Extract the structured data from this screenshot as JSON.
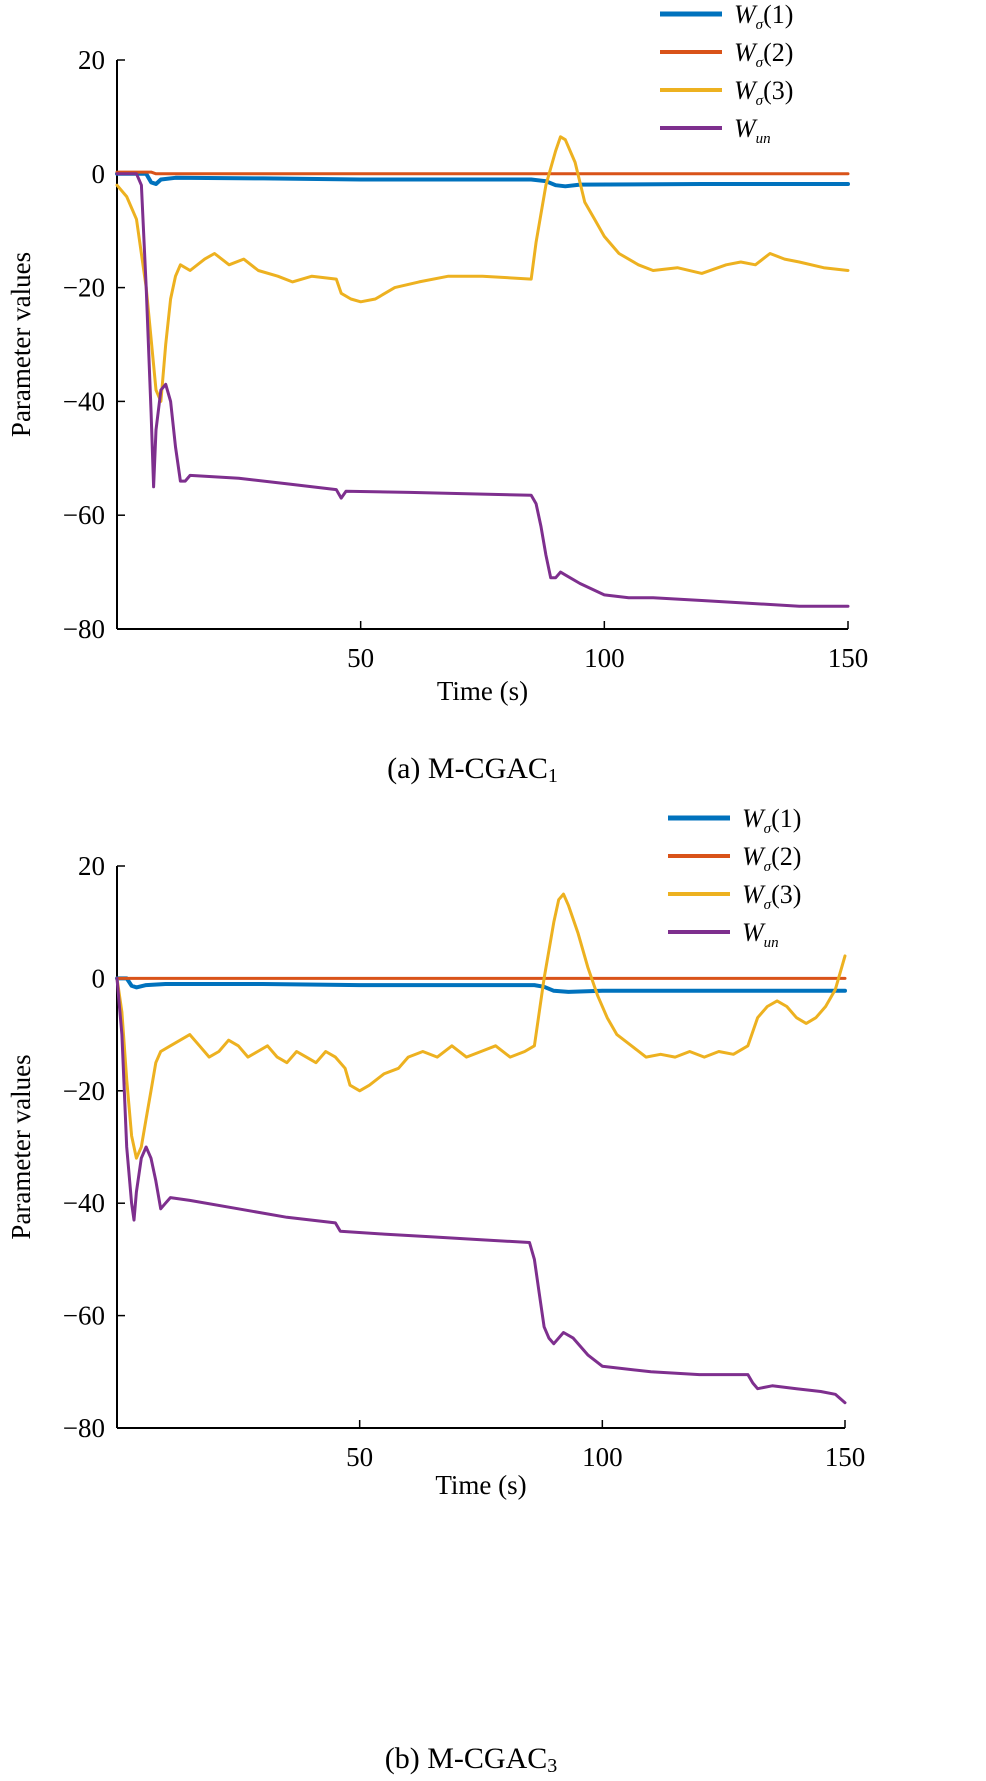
{
  "chart_data": [
    {
      "type": "line",
      "title": "",
      "caption": "(a) M-CGAC",
      "caption_subscript": "1",
      "xlabel": "Time (s)",
      "ylabel": "Parameter values",
      "xlim": [
        0,
        150
      ],
      "ylim": [
        -80,
        20
      ],
      "xticks": [
        50,
        100,
        150
      ],
      "yticks": [
        20,
        0,
        -20,
        -40,
        -60,
        -80
      ],
      "grid": false,
      "legend_position": "top-right",
      "series": [
        {
          "name": "W",
          "name_subscript": "σ",
          "name_suffix": "(1)",
          "color": "#0072BD",
          "points": [
            [
              0,
              0
            ],
            [
              6,
              0
            ],
            [
              7,
              -1.5
            ],
            [
              8,
              -1.8
            ],
            [
              9,
              -1
            ],
            [
              12,
              -0.7
            ],
            [
              30,
              -0.8
            ],
            [
              50,
              -1
            ],
            [
              85,
              -1
            ],
            [
              88,
              -1.3
            ],
            [
              90,
              -2
            ],
            [
              92,
              -2.2
            ],
            [
              95,
              -1.9
            ],
            [
              120,
              -1.8
            ],
            [
              150,
              -1.8
            ]
          ]
        },
        {
          "name": "W",
          "name_subscript": "σ",
          "name_suffix": "(2)",
          "color": "#D95319",
          "points": [
            [
              0,
              0.3
            ],
            [
              7,
              0.3
            ],
            [
              8,
              0
            ],
            [
              150,
              0
            ]
          ]
        },
        {
          "name": "W",
          "name_subscript": "σ",
          "name_suffix": "(3)",
          "color": "#EDB120",
          "points": [
            [
              0,
              -2
            ],
            [
              2,
              -4
            ],
            [
              4,
              -8
            ],
            [
              6,
              -20
            ],
            [
              8,
              -38
            ],
            [
              9,
              -40
            ],
            [
              10,
              -30
            ],
            [
              11,
              -22
            ],
            [
              12,
              -18
            ],
            [
              13,
              -16
            ],
            [
              15,
              -17
            ],
            [
              18,
              -15
            ],
            [
              20,
              -14
            ],
            [
              23,
              -16
            ],
            [
              26,
              -15
            ],
            [
              29,
              -17
            ],
            [
              33,
              -18
            ],
            [
              36,
              -19
            ],
            [
              40,
              -18
            ],
            [
              45,
              -18.5
            ],
            [
              46,
              -21
            ],
            [
              48,
              -22
            ],
            [
              50,
              -22.5
            ],
            [
              53,
              -22
            ],
            [
              57,
              -20
            ],
            [
              62,
              -19
            ],
            [
              68,
              -18
            ],
            [
              75,
              -18
            ],
            [
              85,
              -18.5
            ],
            [
              86,
              -12
            ],
            [
              88,
              -2
            ],
            [
              90,
              4
            ],
            [
              91,
              6.5
            ],
            [
              92,
              6
            ],
            [
              94,
              2
            ],
            [
              96,
              -5
            ],
            [
              98,
              -8
            ],
            [
              100,
              -11
            ],
            [
              103,
              -14
            ],
            [
              107,
              -16
            ],
            [
              110,
              -17
            ],
            [
              115,
              -16.5
            ],
            [
              120,
              -17.5
            ],
            [
              125,
              -16
            ],
            [
              128,
              -15.5
            ],
            [
              131,
              -16
            ],
            [
              134,
              -14
            ],
            [
              137,
              -15
            ],
            [
              140,
              -15.5
            ],
            [
              145,
              -16.5
            ],
            [
              150,
              -17
            ]
          ]
        },
        {
          "name": "W",
          "name_subscript": "un",
          "name_suffix": "",
          "color": "#7E2F8E",
          "points": [
            [
              0,
              0
            ],
            [
              4,
              0
            ],
            [
              5,
              -2
            ],
            [
              6,
              -20
            ],
            [
              7,
              -42
            ],
            [
              7.5,
              -55
            ],
            [
              8,
              -45
            ],
            [
              9,
              -38
            ],
            [
              10,
              -37
            ],
            [
              11,
              -40
            ],
            [
              12,
              -48
            ],
            [
              13,
              -54
            ],
            [
              14,
              -54
            ],
            [
              15,
              -53
            ],
            [
              25,
              -53.5
            ],
            [
              35,
              -54.5
            ],
            [
              45,
              -55.5
            ],
            [
              46,
              -57
            ],
            [
              47,
              -55.8
            ],
            [
              60,
              -56
            ],
            [
              75,
              -56.3
            ],
            [
              85,
              -56.5
            ],
            [
              86,
              -58
            ],
            [
              87,
              -62
            ],
            [
              88,
              -67
            ],
            [
              89,
              -71
            ],
            [
              90,
              -71
            ],
            [
              91,
              -70
            ],
            [
              92,
              -70.5
            ],
            [
              95,
              -72
            ],
            [
              100,
              -74
            ],
            [
              105,
              -74.5
            ],
            [
              110,
              -74.5
            ],
            [
              120,
              -75
            ],
            [
              130,
              -75.5
            ],
            [
              140,
              -76
            ],
            [
              150,
              -76
            ]
          ]
        }
      ]
    },
    {
      "type": "line",
      "title": "",
      "caption": "(b) M-CGAC",
      "caption_subscript": "3",
      "xlabel": "Time (s)",
      "ylabel": "Parameter values",
      "xlim": [
        0,
        150
      ],
      "ylim": [
        -80,
        20
      ],
      "xticks": [
        50,
        100,
        150
      ],
      "yticks": [
        20,
        0,
        -20,
        -40,
        -60,
        -80
      ],
      "grid": false,
      "legend_position": "top-right",
      "series": [
        {
          "name": "W",
          "name_subscript": "σ",
          "name_suffix": "(1)",
          "color": "#0072BD",
          "points": [
            [
              0,
              0
            ],
            [
              2,
              0
            ],
            [
              3,
              -1.3
            ],
            [
              4,
              -1.6
            ],
            [
              6,
              -1.2
            ],
            [
              10,
              -1
            ],
            [
              30,
              -1
            ],
            [
              50,
              -1.2
            ],
            [
              86,
              -1.2
            ],
            [
              88,
              -1.5
            ],
            [
              90,
              -2.2
            ],
            [
              93,
              -2.4
            ],
            [
              100,
              -2.2
            ],
            [
              130,
              -2.2
            ],
            [
              150,
              -2.2
            ]
          ]
        },
        {
          "name": "W",
          "name_subscript": "σ",
          "name_suffix": "(2)",
          "color": "#D95319",
          "points": [
            [
              0,
              0
            ],
            [
              150,
              0
            ]
          ]
        },
        {
          "name": "W",
          "name_subscript": "σ",
          "name_suffix": "(3)",
          "color": "#EDB120",
          "points": [
            [
              0,
              0
            ],
            [
              1,
              -6
            ],
            [
              2,
              -18
            ],
            [
              3,
              -28
            ],
            [
              4,
              -32
            ],
            [
              5,
              -30
            ],
            [
              6,
              -25
            ],
            [
              7,
              -20
            ],
            [
              8,
              -15
            ],
            [
              9,
              -13
            ],
            [
              11,
              -12
            ],
            [
              13,
              -11
            ],
            [
              15,
              -10
            ],
            [
              17,
              -12
            ],
            [
              19,
              -14
            ],
            [
              21,
              -13
            ],
            [
              23,
              -11
            ],
            [
              25,
              -12
            ],
            [
              27,
              -14
            ],
            [
              29,
              -13
            ],
            [
              31,
              -12
            ],
            [
              33,
              -14
            ],
            [
              35,
              -15
            ],
            [
              37,
              -13
            ],
            [
              39,
              -14
            ],
            [
              41,
              -15
            ],
            [
              43,
              -13
            ],
            [
              45,
              -14
            ],
            [
              47,
              -16
            ],
            [
              48,
              -19
            ],
            [
              50,
              -20
            ],
            [
              52,
              -19
            ],
            [
              55,
              -17
            ],
            [
              58,
              -16
            ],
            [
              60,
              -14
            ],
            [
              63,
              -13
            ],
            [
              66,
              -14
            ],
            [
              69,
              -12
            ],
            [
              72,
              -14
            ],
            [
              75,
              -13
            ],
            [
              78,
              -12
            ],
            [
              81,
              -14
            ],
            [
              84,
              -13
            ],
            [
              86,
              -12
            ],
            [
              88,
              0
            ],
            [
              90,
              10
            ],
            [
              91,
              14
            ],
            [
              92,
              15
            ],
            [
              93,
              13
            ],
            [
              95,
              8
            ],
            [
              97,
              2
            ],
            [
              99,
              -3
            ],
            [
              101,
              -7
            ],
            [
              103,
              -10
            ],
            [
              106,
              -12
            ],
            [
              109,
              -14
            ],
            [
              112,
              -13.5
            ],
            [
              115,
              -14
            ],
            [
              118,
              -13
            ],
            [
              121,
              -14
            ],
            [
              124,
              -13
            ],
            [
              127,
              -13.5
            ],
            [
              130,
              -12
            ],
            [
              132,
              -7
            ],
            [
              134,
              -5
            ],
            [
              136,
              -4
            ],
            [
              138,
              -5
            ],
            [
              140,
              -7
            ],
            [
              142,
              -8
            ],
            [
              144,
              -7
            ],
            [
              146,
              -5
            ],
            [
              148,
              -2
            ],
            [
              150,
              4
            ]
          ]
        },
        {
          "name": "W",
          "name_subscript": "un",
          "name_suffix": "",
          "color": "#7E2F8E",
          "points": [
            [
              0,
              0
            ],
            [
              1,
              -10
            ],
            [
              2,
              -30
            ],
            [
              3,
              -40
            ],
            [
              3.5,
              -43
            ],
            [
              4,
              -38
            ],
            [
              5,
              -32
            ],
            [
              6,
              -30
            ],
            [
              7,
              -32
            ],
            [
              8,
              -36
            ],
            [
              9,
              -41
            ],
            [
              10,
              -40
            ],
            [
              11,
              -39
            ],
            [
              15,
              -39.5
            ],
            [
              25,
              -41
            ],
            [
              35,
              -42.5
            ],
            [
              45,
              -43.5
            ],
            [
              46,
              -45
            ],
            [
              55,
              -45.5
            ],
            [
              65,
              -46
            ],
            [
              75,
              -46.5
            ],
            [
              85,
              -47
            ],
            [
              86,
              -50
            ],
            [
              87,
              -56
            ],
            [
              88,
              -62
            ],
            [
              89,
              -64
            ],
            [
              90,
              -65
            ],
            [
              92,
              -63
            ],
            [
              94,
              -64
            ],
            [
              97,
              -67
            ],
            [
              100,
              -69
            ],
            [
              110,
              -70
            ],
            [
              120,
              -70.5
            ],
            [
              130,
              -70.5
            ],
            [
              131,
              -72
            ],
            [
              132,
              -73
            ],
            [
              135,
              -72.5
            ],
            [
              140,
              -73
            ],
            [
              145,
              -73.5
            ],
            [
              148,
              -74
            ],
            [
              150,
              -75.5
            ]
          ]
        }
      ]
    }
  ]
}
